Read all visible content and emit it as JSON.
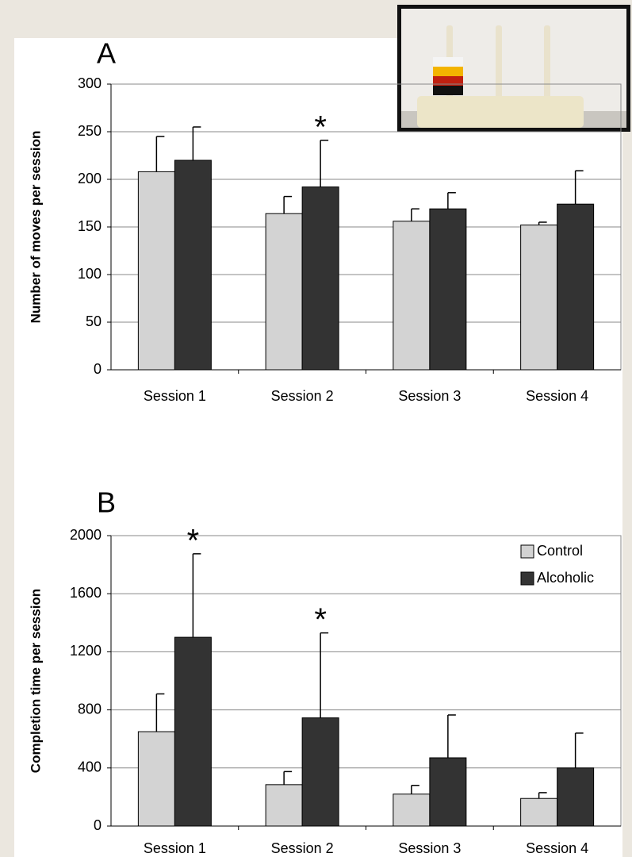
{
  "chart_data": [
    {
      "type": "bar",
      "panel": "A",
      "y_label": "Number of moves per session",
      "categories": [
        "Session 1",
        "Session 2",
        "Session 3",
        "Session 4"
      ],
      "series": [
        {
          "color": "#d3d3d3",
          "values": [
            208,
            164,
            156,
            152
          ],
          "errors": [
            37,
            18,
            13,
            3
          ]
        },
        {
          "color": "#333333",
          "values": [
            220,
            192,
            169,
            174
          ],
          "errors": [
            35,
            49,
            17,
            35
          ]
        }
      ],
      "annotations": [
        {
          "text": "*",
          "category": 1,
          "series": 1
        }
      ],
      "ylim": [
        0,
        300
      ],
      "yticks": [
        0,
        50,
        100,
        150,
        200,
        250,
        300
      ],
      "grid": true
    },
    {
      "type": "bar",
      "panel": "B",
      "y_label": "Completion time per session",
      "categories": [
        "Session 1",
        "Session 2",
        "Session 3",
        "Session 4"
      ],
      "series": [
        {
          "name": "Control",
          "color": "#d3d3d3",
          "values": [
            650,
            285,
            220,
            190
          ],
          "errors": [
            260,
            90,
            60,
            40
          ]
        },
        {
          "name": "Alcoholic",
          "color": "#333333",
          "values": [
            1300,
            745,
            470,
            400
          ],
          "errors": [
            575,
            585,
            295,
            240
          ]
        }
      ],
      "annotations": [
        {
          "text": "*",
          "category": 0,
          "series": 1
        },
        {
          "text": "*",
          "category": 1,
          "series": 1
        }
      ],
      "ylim": [
        0,
        2000
      ],
      "yticks": [
        0,
        400,
        800,
        1200,
        1600,
        2000
      ],
      "grid": true,
      "legend": "top-right"
    }
  ]
}
